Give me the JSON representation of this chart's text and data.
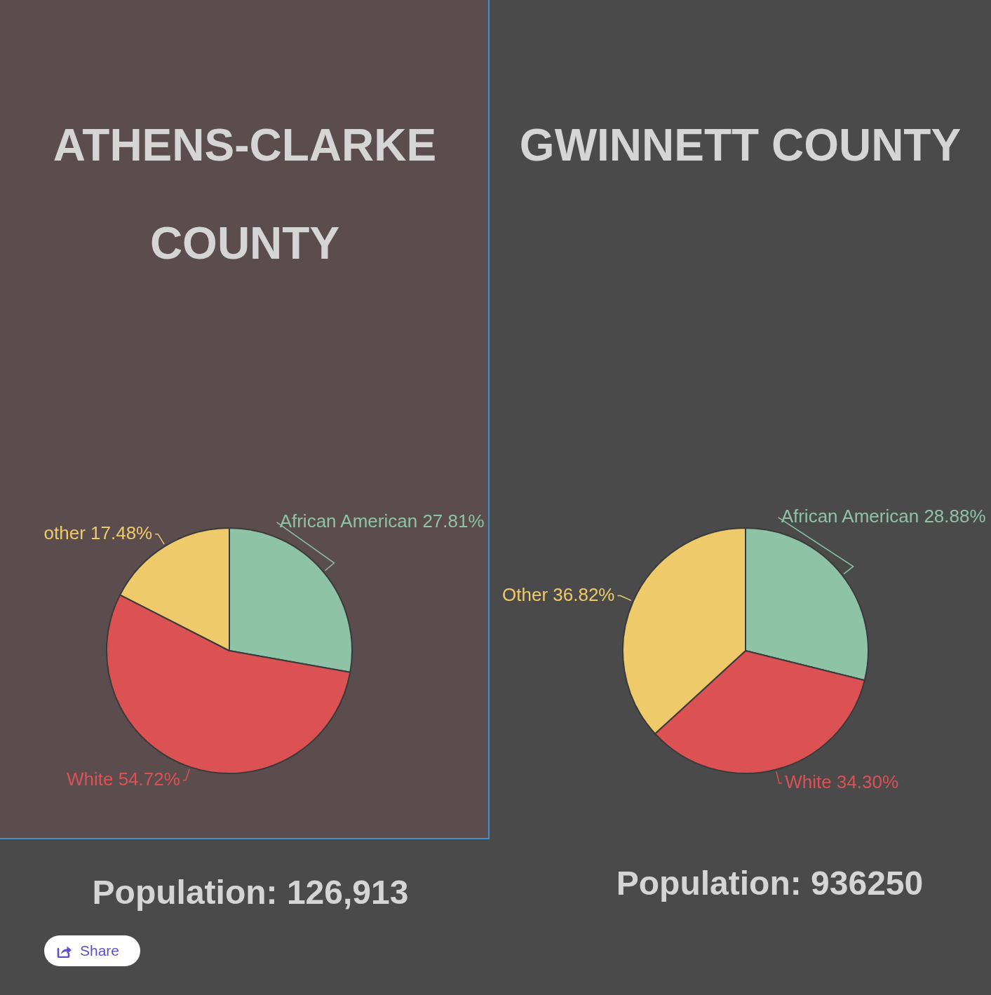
{
  "chart_data": [
    {
      "type": "pie",
      "title": "ATHENS-CLARKE COUNTY",
      "categories": [
        "African American",
        "White",
        "other"
      ],
      "values": [
        27.81,
        54.72,
        17.48
      ],
      "colors": [
        "#8ec3a8",
        "#dc5254",
        "#efca6a"
      ],
      "value_labels": [
        "27.81%",
        "54.72%",
        "17.48%"
      ],
      "annotations": [
        "Population: 126,913",
        "Share"
      ]
    },
    {
      "type": "pie",
      "title": "GWINNETT COUNTY",
      "categories": [
        "African American",
        "White",
        "Other"
      ],
      "values": [
        28.88,
        34.3,
        36.82
      ],
      "colors": [
        "#8ec3a8",
        "#dc5254",
        "#efca6a"
      ],
      "value_labels": [
        "28.88%",
        "34.30%",
        "36.82%"
      ],
      "annotations": [
        "Population: 936250"
      ]
    }
  ]
}
